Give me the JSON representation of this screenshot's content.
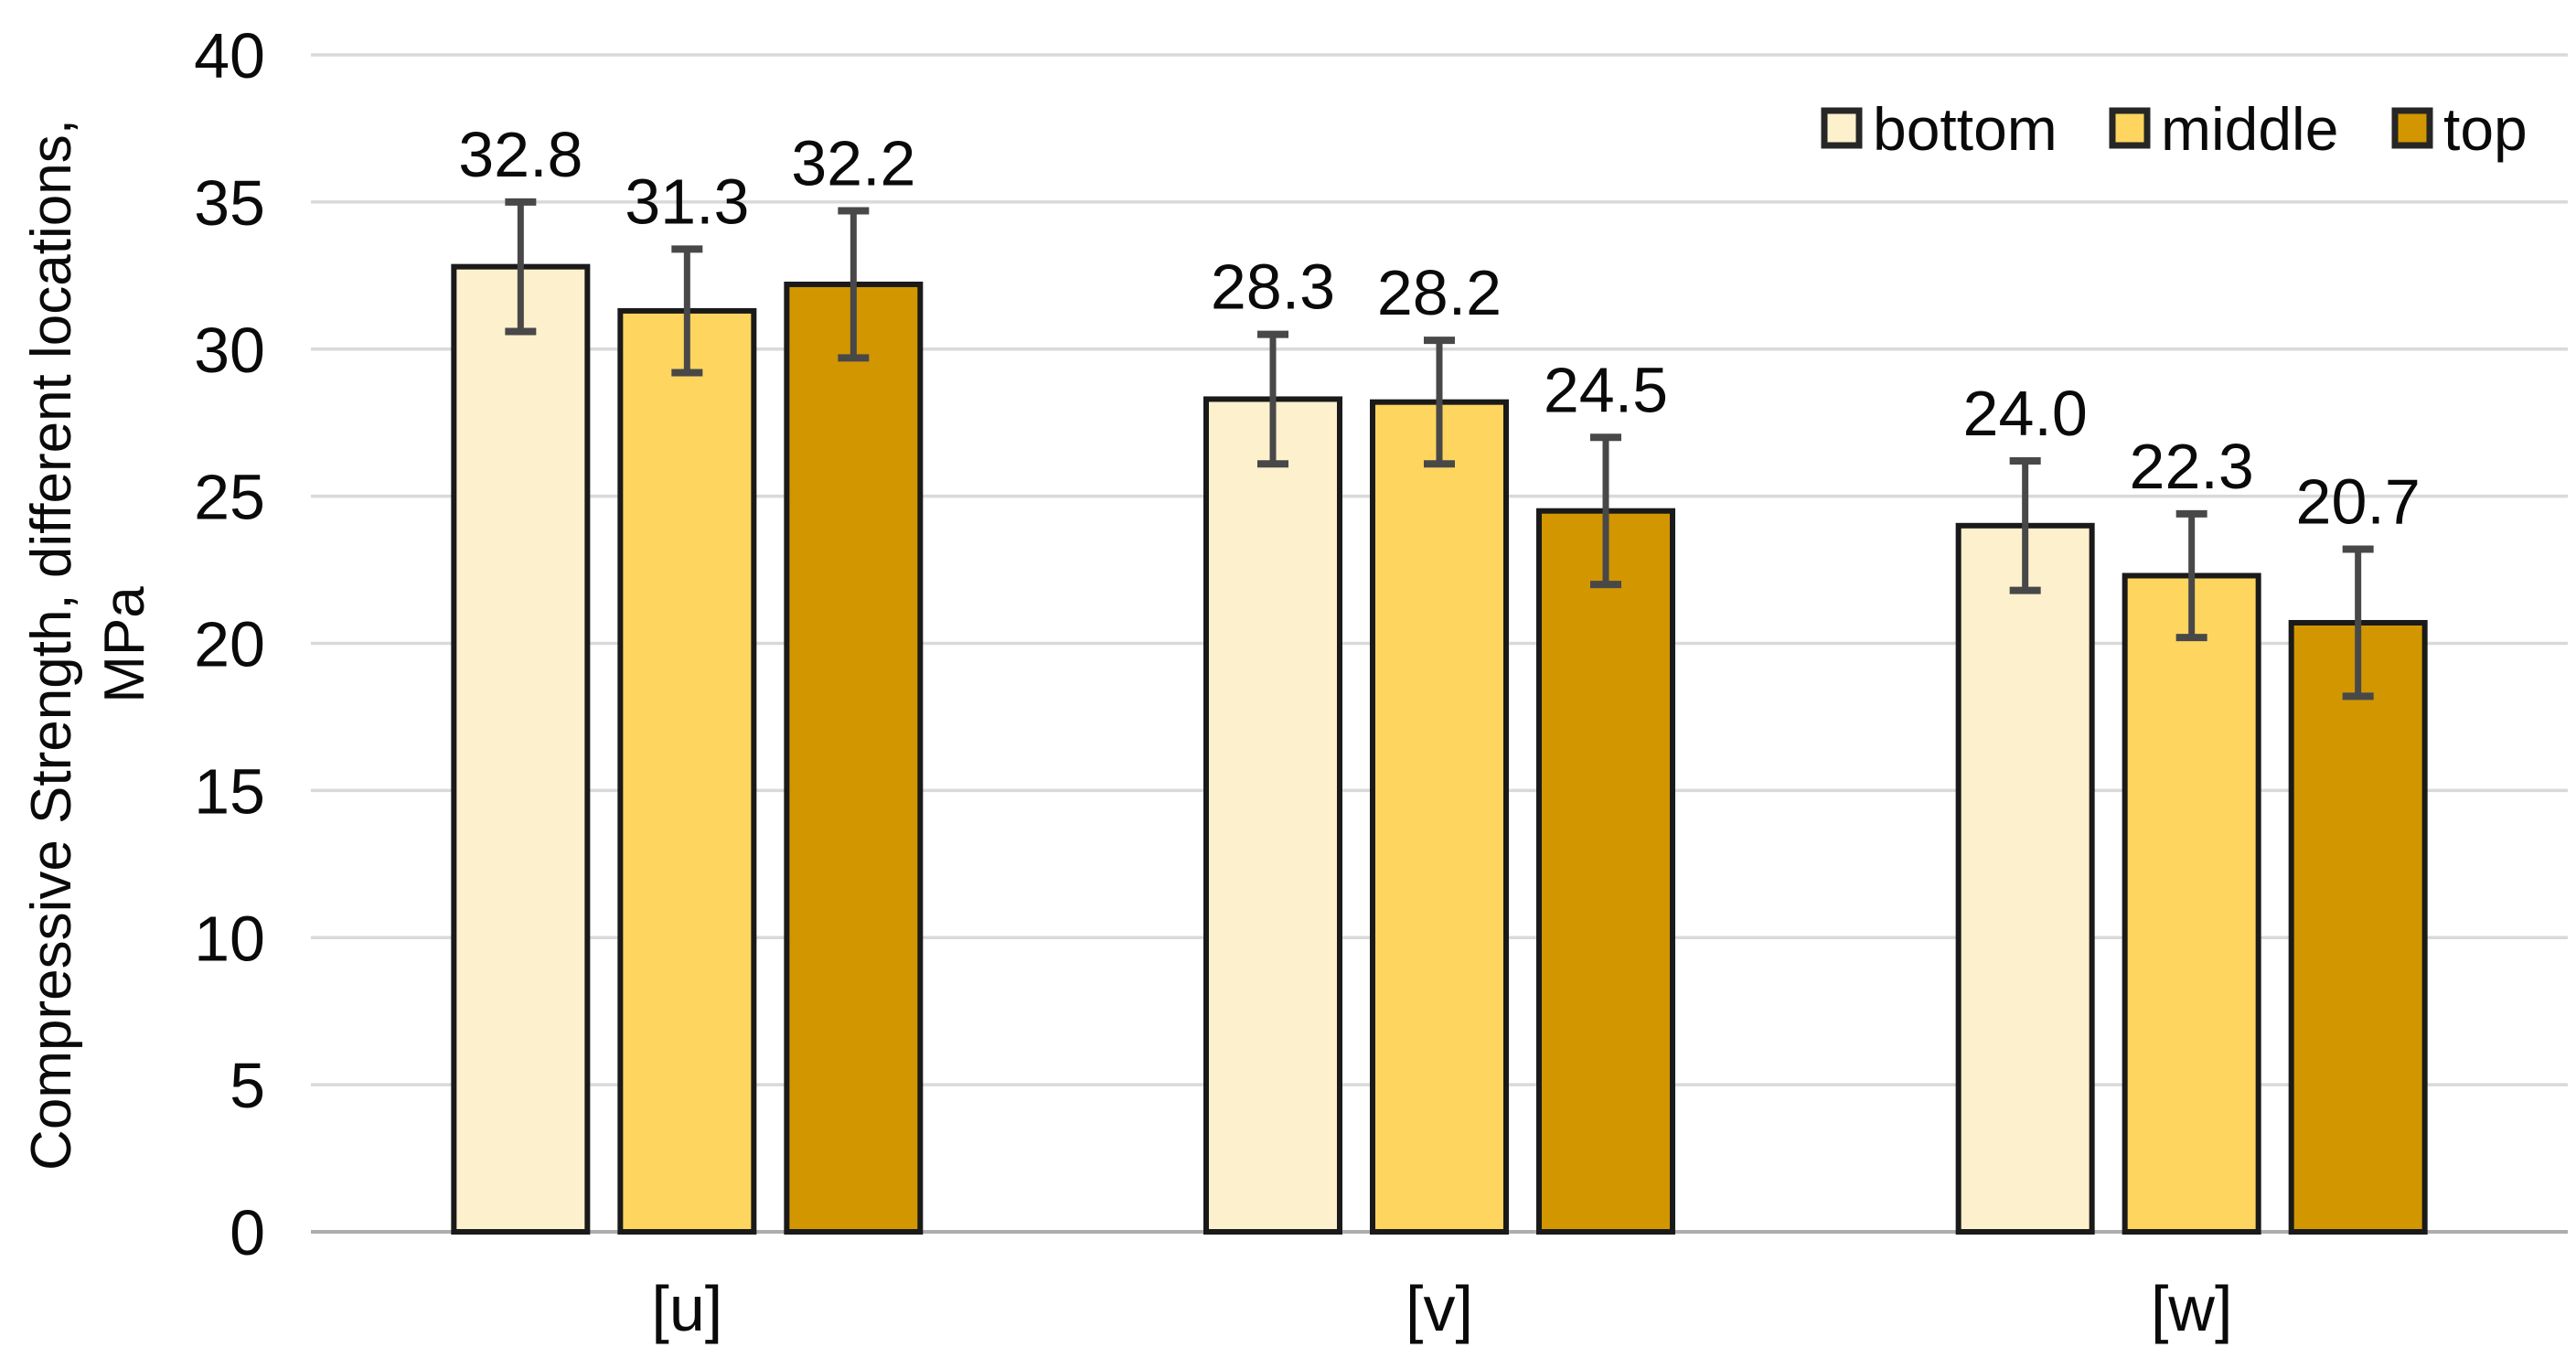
{
  "figure": {
    "background": "#FFFFFF"
  },
  "chart_data": {
    "type": "bar",
    "title": "",
    "ylabel_line1": "Compressive Strength, different locations,",
    "ylabel_line2": "MPa",
    "xlabel": "",
    "ylim": [
      0,
      40
    ],
    "ytick_step": 5,
    "ytick_labels": [
      "40",
      "35",
      "30",
      "25",
      "20",
      "15",
      "10",
      "5",
      "0"
    ],
    "categories": [
      "[u]",
      "[v]",
      "[w]"
    ],
    "grid": "horizontal",
    "legend_position": "top-right",
    "legend_labels": [
      "bottom",
      "middle",
      "top"
    ],
    "series": [
      {
        "name": "bottom",
        "color": "#FCF0CD",
        "values": [
          32.8,
          28.3,
          24.0
        ],
        "value_labels": [
          "32.8",
          "28.3",
          "24.0"
        ],
        "error_bars": [
          2.2,
          2.2,
          2.2
        ]
      },
      {
        "name": "middle",
        "color": "#FDD55F",
        "values": [
          31.3,
          28.2,
          22.3
        ],
        "value_labels": [
          "31.3",
          "28.2",
          "22.3"
        ],
        "error_bars": [
          2.1,
          2.1,
          2.1
        ]
      },
      {
        "name": "top",
        "color": "#D29600",
        "values": [
          32.2,
          24.5,
          20.7
        ],
        "value_labels": [
          "32.2",
          "24.5",
          "20.7"
        ],
        "error_bars": [
          2.5,
          2.5,
          2.5
        ]
      }
    ],
    "style_colors": {
      "gridline": "#D9D9D9",
      "axis_line": "#ADADAD",
      "bar_border": "#1A1A1A",
      "error_bar": "#484848",
      "text": "#0A0A0A",
      "legend_swatch_border": "#262626"
    }
  }
}
